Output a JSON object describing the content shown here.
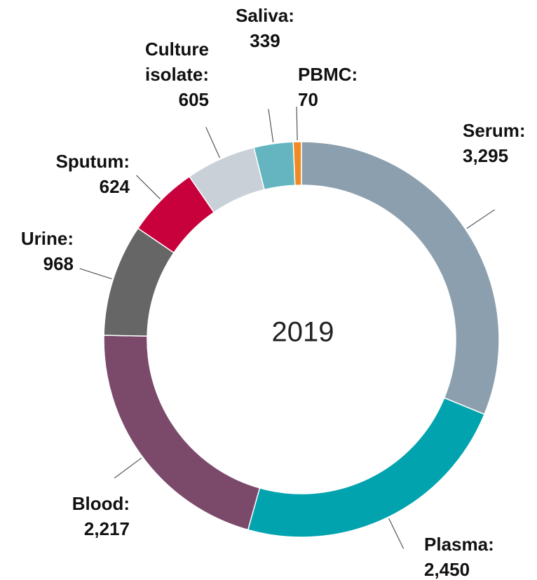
{
  "chart_data": {
    "type": "donut",
    "center_text": "2019",
    "categories": [
      "Serum:",
      "Plasma:",
      "Blood:",
      "Urine:",
      "Sputum:",
      "Culture isolate:",
      "Saliva:",
      "PBMC:"
    ],
    "values": [
      3295,
      2450,
      2217,
      968,
      624,
      605,
      339,
      70
    ],
    "value_labels": [
      "3,295",
      "2,450",
      "2,217",
      "968",
      "624",
      "605",
      "339",
      "70"
    ],
    "colors": [
      "#8c9fae",
      "#00a3ae",
      "#7b4a6b",
      "#666666",
      "#c8003c",
      "#c9d0d8",
      "#64b5c0",
      "#f08a24"
    ]
  }
}
